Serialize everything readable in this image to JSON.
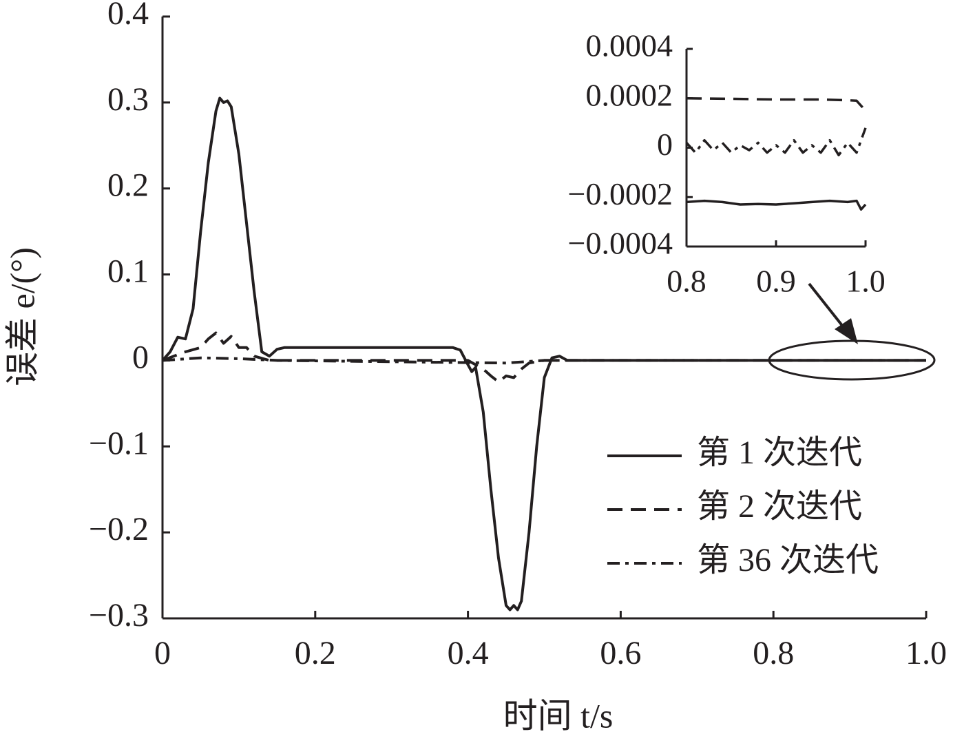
{
  "chart_data": [
    {
      "type": "line",
      "xlabel": "时间 t/s",
      "ylabel": "误差 e/(°)",
      "xlim": [
        0,
        1
      ],
      "ylim": [
        -0.3,
        0.4
      ],
      "xticks": [
        0,
        0.2,
        0.4,
        0.6,
        0.8,
        {
          "value": 1,
          "label": "1.0"
        }
      ],
      "yticks": [
        {
          "value": -0.3,
          "label": "−0.3"
        },
        {
          "value": -0.2,
          "label": "−0.2"
        },
        {
          "value": -0.1,
          "label": "−0.1"
        },
        0,
        0.1,
        0.2,
        0.3,
        0.4
      ],
      "legend": "lower right",
      "series": [
        {
          "name": "第 1 次迭代",
          "color": "#231f20",
          "linestyle": "solid",
          "x": [
            0,
            0.01,
            0.02,
            0.03,
            0.04,
            0.05,
            0.06,
            0.07,
            0.075,
            0.08,
            0.085,
            0.09,
            0.1,
            0.11,
            0.12,
            0.13,
            0.14,
            0.15,
            0.16,
            0.38,
            0.39,
            0.4,
            0.405,
            0.41,
            0.42,
            0.43,
            0.44,
            0.45,
            0.455,
            0.46,
            0.465,
            0.47,
            0.48,
            0.49,
            0.5,
            0.51,
            0.52,
            0.53,
            1
          ],
          "values": [
            0,
            0.01,
            0.027,
            0.025,
            0.06,
            0.15,
            0.23,
            0.29,
            0.305,
            0.3,
            0.302,
            0.295,
            0.24,
            0.16,
            0.08,
            0.01,
            0.005,
            0.013,
            0.015,
            0.015,
            0.012,
            -0.005,
            -0.013,
            -0.008,
            -0.06,
            -0.15,
            -0.23,
            -0.285,
            -0.29,
            -0.285,
            -0.29,
            -0.28,
            -0.2,
            -0.1,
            -0.02,
            0.003,
            0.005,
            0,
            0
          ]
        },
        {
          "name": "第 2 次迭代",
          "color": "#231f20",
          "linestyle": "dashed",
          "x": [
            0,
            0.03,
            0.05,
            0.06,
            0.07,
            0.08,
            0.09,
            0.1,
            0.11,
            0.12,
            0.14,
            0.4,
            0.42,
            0.43,
            0.44,
            0.45,
            0.46,
            0.47,
            0.48,
            0.5,
            1
          ],
          "values": [
            0,
            0.01,
            0.015,
            0.025,
            0.032,
            0.02,
            0.028,
            0.015,
            0.015,
            0.005,
            0,
            0,
            -0.01,
            -0.018,
            -0.025,
            -0.018,
            -0.02,
            -0.01,
            -0.003,
            0,
            0
          ]
        },
        {
          "name": "第 36 次迭代",
          "color": "#231f20",
          "linestyle": "dashdot",
          "x": [
            0,
            0.05,
            0.1,
            0.15,
            0.45,
            0.5,
            1
          ],
          "values": [
            0,
            0.003,
            0.002,
            0,
            -0.003,
            0,
            0
          ]
        }
      ]
    },
    {
      "type": "line",
      "xlim": [
        0.8,
        1
      ],
      "ylim": [
        -0.0004,
        0.0004
      ],
      "xticks": [
        0.8,
        0.9,
        {
          "value": 1,
          "label": "1.0"
        }
      ],
      "yticks": [
        {
          "value": -0.0004,
          "label": "−0.0004"
        },
        {
          "value": -0.0002,
          "label": "−0.0002"
        },
        0,
        0.0002,
        0.0004
      ],
      "series": [
        {
          "color": "#231f20",
          "linestyle": "solid",
          "x": [
            0.8,
            0.82,
            0.84,
            0.86,
            0.88,
            0.9,
            0.92,
            0.94,
            0.96,
            0.98,
            0.99,
            0.995,
            1
          ],
          "values": [
            -0.00022,
            -0.000215,
            -0.00022,
            -0.00023,
            -0.000228,
            -0.00023,
            -0.000225,
            -0.00022,
            -0.000215,
            -0.00022,
            -0.000215,
            -0.00025,
            -0.00023
          ]
        },
        {
          "color": "#231f20",
          "linestyle": "dashed",
          "x": [
            0.8,
            0.85,
            0.9,
            0.95,
            0.98,
            0.99,
            1
          ],
          "values": [
            0.0002,
            0.000198,
            0.000195,
            0.000195,
            0.000192,
            0.00019,
            0.00015
          ]
        },
        {
          "color": "#231f20",
          "linestyle": "dashdot",
          "x": [
            0.8,
            0.81,
            0.82,
            0.83,
            0.84,
            0.85,
            0.86,
            0.87,
            0.88,
            0.89,
            0.9,
            0.91,
            0.92,
            0.93,
            0.94,
            0.95,
            0.96,
            0.97,
            0.98,
            0.99,
            1
          ],
          "values": [
            2e-05,
            -2e-05,
            3e-05,
            -1e-05,
            2e-05,
            -2e-05,
            1e-05,
            -1e-05,
            2e-05,
            -2e-05,
            1e-05,
            -2e-05,
            3e-05,
            -2e-05,
            1e-05,
            -2e-05,
            3e-05,
            -3e-05,
            2e-05,
            -2e-05,
            8e-05
          ]
        }
      ]
    }
  ]
}
